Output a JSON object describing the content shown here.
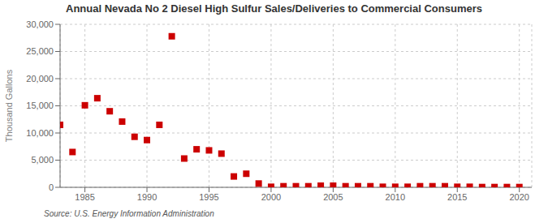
{
  "chart_data": {
    "type": "scatter",
    "title": "Annual Nevada No 2 Diesel High Sulfur Sales/Deliveries to Commercial Consumers",
    "ylabel": "Thousand Gallons",
    "annotations": [
      "Source: U.S. Energy Information Administration"
    ],
    "x": [
      1983,
      1984,
      1985,
      1986,
      1987,
      1988,
      1989,
      1990,
      1991,
      1992,
      1993,
      1994,
      1995,
      1996,
      1997,
      1998,
      1999,
      2000,
      2001,
      2002,
      2003,
      2004,
      2005,
      2006,
      2007,
      2008,
      2009,
      2010,
      2011,
      2012,
      2013,
      2014,
      2015,
      2016,
      2017,
      2018,
      2019,
      2020
    ],
    "values": [
      11500,
      6500,
      15100,
      16400,
      14000,
      12100,
      9300,
      8700,
      11500,
      27800,
      5300,
      7000,
      6800,
      6200,
      2000,
      2500,
      700,
      100,
      200,
      200,
      200,
      300,
      300,
      200,
      200,
      200,
      100,
      100,
      100,
      200,
      200,
      200,
      100,
      100,
      50,
      50,
      50,
      50
    ],
    "color": "#cc0000",
    "marker": "square",
    "xlim": [
      1983,
      2021
    ],
    "ylim": [
      0,
      30000
    ],
    "xticks": [
      1985,
      1990,
      1995,
      2000,
      2005,
      2010,
      2015,
      2020
    ],
    "yticks": [
      0,
      {
        "value": 5000,
        "label": "5,000"
      },
      {
        "value": 10000,
        "label": "10,000"
      },
      {
        "value": 15000,
        "label": "15,000"
      },
      {
        "value": 20000,
        "label": "20,000"
      },
      {
        "value": 25000,
        "label": "25,000"
      },
      {
        "value": 30000,
        "label": "30,000"
      }
    ],
    "grid": true
  }
}
